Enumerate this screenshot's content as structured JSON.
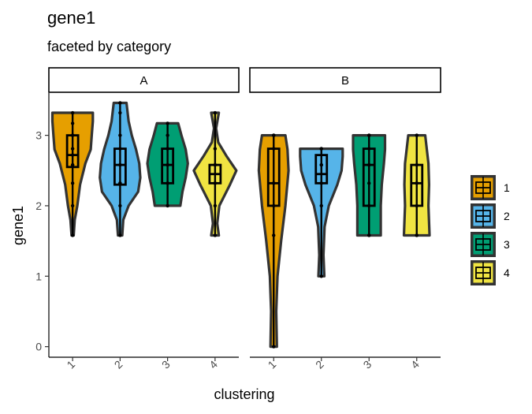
{
  "chart_data": {
    "type": "violin",
    "title": "gene1",
    "subtitle": "faceted by category",
    "xlabel": "clustering",
    "ylabel": "gene1",
    "ylim": [
      -0.15,
      3.6
    ],
    "yticks": [
      0,
      1,
      2,
      3
    ],
    "categories": [
      "1",
      "2",
      "3",
      "4"
    ],
    "colors": {
      "1": "#E69F00",
      "2": "#56B4E9",
      "3": "#009E73",
      "4": "#F0E442"
    },
    "legend": {
      "position": "right",
      "entries": [
        "1",
        "2",
        "3",
        "4"
      ]
    },
    "facets": [
      {
        "name": "A",
        "groups": [
          {
            "cluster": "1",
            "min": 1.58,
            "q1": 2.55,
            "median": 2.72,
            "q3": 3.0,
            "max": 3.32,
            "points": [
              1.58,
              2.0,
              2.32,
              2.58,
              2.58,
              2.72,
              2.81,
              3.0,
              3.0,
              3.17,
              3.32
            ],
            "violin": [
              [
                1.58,
                0.05
              ],
              [
                1.8,
                0.1
              ],
              [
                2.0,
                0.22
              ],
              [
                2.3,
                0.35
              ],
              [
                2.6,
                0.6
              ],
              [
                2.8,
                0.85
              ],
              [
                3.0,
                0.9
              ],
              [
                3.2,
                0.95
              ],
              [
                3.32,
                0.95
              ]
            ]
          },
          {
            "cluster": "2",
            "min": 1.58,
            "q1": 2.3,
            "median": 2.58,
            "q3": 2.81,
            "max": 3.46,
            "points": [
              1.58,
              2.0,
              2.32,
              2.32,
              2.58,
              2.58,
              2.81,
              3.0,
              3.32,
              3.46
            ],
            "violin": [
              [
                1.58,
                0.1
              ],
              [
                1.8,
                0.15
              ],
              [
                2.0,
                0.4
              ],
              [
                2.2,
                0.85
              ],
              [
                2.4,
                0.95
              ],
              [
                2.6,
                0.9
              ],
              [
                2.8,
                0.75
              ],
              [
                3.0,
                0.55
              ],
              [
                3.2,
                0.4
              ],
              [
                3.46,
                0.3
              ]
            ]
          },
          {
            "cluster": "3",
            "min": 2.0,
            "q1": 2.32,
            "median": 2.58,
            "q3": 2.81,
            "max": 3.17,
            "points": [
              2.0,
              2.32,
              2.32,
              2.58,
              2.58,
              2.81,
              2.81,
              3.0,
              3.17
            ],
            "violin": [
              [
                2.0,
                0.6
              ],
              [
                2.2,
                0.7
              ],
              [
                2.4,
                0.85
              ],
              [
                2.6,
                0.95
              ],
              [
                2.8,
                0.85
              ],
              [
                3.0,
                0.65
              ],
              [
                3.17,
                0.5
              ]
            ]
          },
          {
            "cluster": "4",
            "min": 1.58,
            "q1": 2.32,
            "median": 2.45,
            "q3": 2.58,
            "max": 3.32,
            "points": [
              1.58,
              2.0,
              2.32,
              2.32,
              2.58,
              2.58,
              2.81,
              3.32
            ],
            "violin": [
              [
                1.58,
                0.18
              ],
              [
                1.75,
                0.1
              ],
              [
                2.0,
                0.2
              ],
              [
                2.3,
                0.7
              ],
              [
                2.5,
                1.0
              ],
              [
                2.7,
                0.55
              ],
              [
                2.9,
                0.15
              ],
              [
                3.1,
                0.05
              ],
              [
                3.32,
                0.18
              ]
            ]
          }
        ]
      },
      {
        "name": "B",
        "groups": [
          {
            "cluster": "1",
            "min": 0.0,
            "q1": 2.0,
            "median": 2.32,
            "q3": 2.81,
            "max": 3.0,
            "points": [
              0.0,
              1.58,
              2.0,
              2.32,
              2.32,
              2.81,
              3.0,
              3.0
            ],
            "violin": [
              [
                0.0,
                0.15
              ],
              [
                0.5,
                0.12
              ],
              [
                1.0,
                0.18
              ],
              [
                1.5,
                0.35
              ],
              [
                2.0,
                0.55
              ],
              [
                2.5,
                0.7
              ],
              [
                2.8,
                0.65
              ],
              [
                3.0,
                0.55
              ]
            ]
          },
          {
            "cluster": "2",
            "min": 1.0,
            "q1": 2.32,
            "median": 2.45,
            "q3": 2.72,
            "max": 2.81,
            "points": [
              1.0,
              2.0,
              2.32,
              2.58,
              2.58,
              2.81,
              2.81
            ],
            "violin": [
              [
                1.0,
                0.14
              ],
              [
                1.3,
                0.1
              ],
              [
                1.7,
                0.15
              ],
              [
                2.0,
                0.35
              ],
              [
                2.3,
                0.75
              ],
              [
                2.5,
                0.95
              ],
              [
                2.7,
                1.0
              ],
              [
                2.81,
                1.0
              ]
            ]
          },
          {
            "cluster": "3",
            "min": 1.58,
            "q1": 2.0,
            "median": 2.58,
            "q3": 2.81,
            "max": 3.0,
            "points": [
              1.58,
              1.58,
              2.0,
              2.32,
              2.58,
              2.58,
              2.81,
              3.0,
              3.0
            ],
            "violin": [
              [
                1.58,
                0.55
              ],
              [
                2.0,
                0.55
              ],
              [
                2.3,
                0.6
              ],
              [
                2.6,
                0.7
              ],
              [
                2.8,
                0.75
              ],
              [
                3.0,
                0.75
              ]
            ]
          },
          {
            "cluster": "4",
            "min": 1.58,
            "q1": 2.0,
            "median": 2.32,
            "q3": 2.58,
            "max": 3.0,
            "points": [
              1.58,
              1.58,
              2.0,
              2.32,
              2.32,
              2.58,
              3.0
            ],
            "violin": [
              [
                1.58,
                0.6
              ],
              [
                2.0,
                0.55
              ],
              [
                2.3,
                0.58
              ],
              [
                2.6,
                0.55
              ],
              [
                3.0,
                0.4
              ]
            ]
          }
        ]
      }
    ]
  }
}
